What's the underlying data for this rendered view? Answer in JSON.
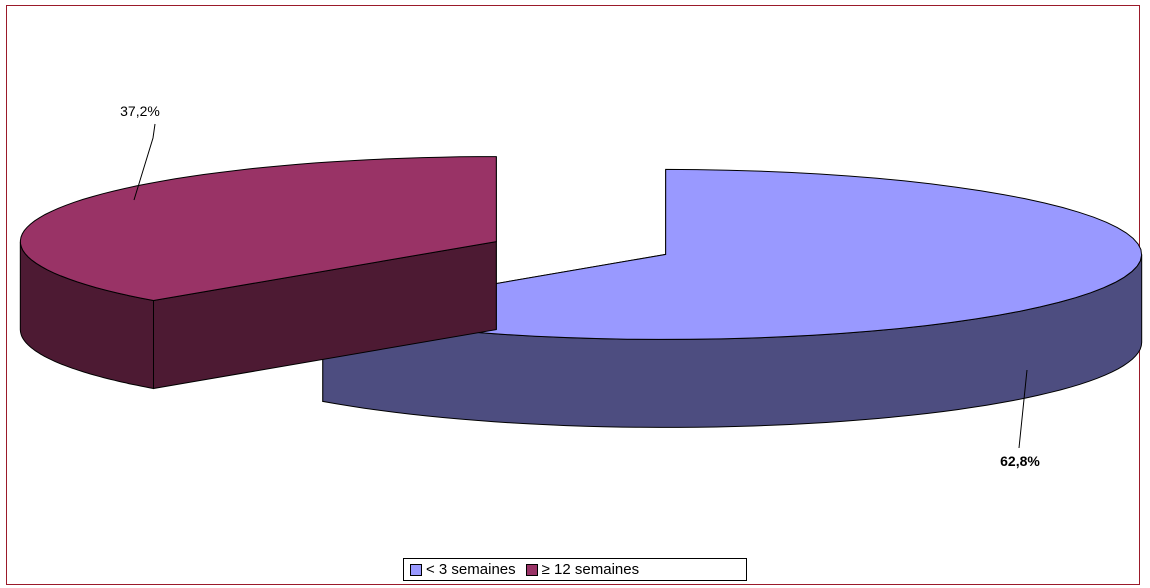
{
  "chart_data": {
    "type": "pie",
    "style": "3d-exploded",
    "categories": [
      "< 3 semaines",
      "≥ 12 semaines"
    ],
    "values": [
      62.8,
      37.2
    ],
    "data_labels": [
      "62,8%",
      "37,2%"
    ],
    "title": "",
    "legend_position": "bottom",
    "colors": {
      "top": [
        "#9999ff",
        "#993366"
      ],
      "side": [
        "#4d4d80",
        "#4d1a33"
      ]
    }
  },
  "frame": {
    "border_color": "#9b1a2a"
  },
  "legend": {
    "items": [
      {
        "label": "< 3 semaines",
        "color": "#9999ff"
      },
      {
        "label": "≥ 12 semaines",
        "color": "#993366"
      }
    ]
  }
}
